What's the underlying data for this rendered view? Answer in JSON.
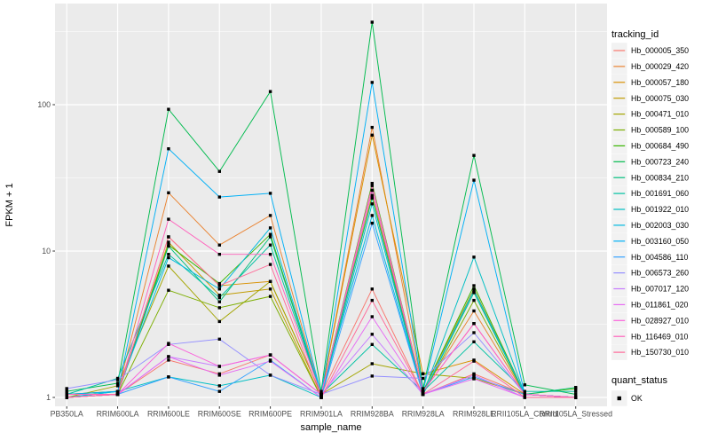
{
  "figure": {
    "background": "#FFFFFF",
    "panel_background": "#EBEBEB",
    "grid_color": "#FFFFFF",
    "axis_text_color": "#4D4D4D",
    "tick_color": "#333333",
    "point_color": "#000000",
    "legend_key_background": "#F2F2F2"
  },
  "chart_data": {
    "type": "line",
    "title": "",
    "xlabel": "sample_name",
    "ylabel": "FPKM + 1",
    "y_scale": "log10",
    "ylim": [
      0.9,
      480
    ],
    "ytick_labels": [
      "1",
      "10",
      "100"
    ],
    "ytick_values": [
      1,
      10,
      100
    ],
    "y_minor_values": [
      3.162,
      31.62,
      316.2
    ],
    "grid": true,
    "legend_position": "right",
    "legend_title": "tracking_id",
    "quant_legend": {
      "title": "quant_status",
      "label": "OK"
    },
    "values_note": "plotted values are FPKM + 1",
    "categories": [
      "PB350LA",
      "RRIM600LA",
      "RRIM600LE",
      "RRIM600SE",
      "RRIM600PE",
      "RRIM901LA",
      "RRIM928BA",
      "RRIM928LA",
      "RRIM928LE",
      "RRII105LA_Control",
      "RRII105LA_Stressed"
    ],
    "series": [
      {
        "name": "Hb_000005_350",
        "color": "#F8766D",
        "values": [
          1.05,
          1.05,
          1.8,
          1.45,
          1.95,
          1.05,
          5.5,
          1.05,
          1.45,
          1.05,
          1.0
        ]
      },
      {
        "name": "Hb_000029_420",
        "color": "#EA8331",
        "values": [
          1.05,
          1.1,
          25,
          11,
          17.5,
          1.05,
          70,
          1.1,
          3.9,
          1.05,
          1.0
        ]
      },
      {
        "name": "Hb_000057_180",
        "color": "#D89000",
        "values": [
          1.0,
          1.05,
          12.5,
          5.8,
          6.2,
          1.05,
          62,
          1.45,
          1.8,
          1.05,
          1.0
        ]
      },
      {
        "name": "Hb_000075_030",
        "color": "#C09B00",
        "values": [
          1.0,
          1.05,
          11.5,
          5.0,
          5.5,
          1.0,
          24,
          1.1,
          5.5,
          1.05,
          1.0
        ]
      },
      {
        "name": "Hb_000471_010",
        "color": "#A3A500",
        "values": [
          1.0,
          1.2,
          7.9,
          3.3,
          6.2,
          1.05,
          1.7,
          1.45,
          1.35,
          1.05,
          1.0
        ]
      },
      {
        "name": "Hb_000589_100",
        "color": "#7CAE00",
        "values": [
          1.0,
          1.05,
          5.4,
          4.1,
          4.9,
          1.0,
          26,
          1.05,
          4.6,
          1.05,
          1.0
        ]
      },
      {
        "name": "Hb_000684_490",
        "color": "#39B600",
        "values": [
          1.05,
          1.1,
          11,
          6.0,
          13,
          1.05,
          29,
          1.1,
          5.8,
          1.05,
          1.15
        ]
      },
      {
        "name": "Hb_000723_240",
        "color": "#00BB4E",
        "values": [
          1.1,
          1.25,
          93,
          35,
          123,
          1.1,
          366,
          1.15,
          45,
          1.22,
          1.05
        ]
      },
      {
        "name": "Hb_000834_210",
        "color": "#00BF7D",
        "values": [
          1.0,
          1.05,
          10.8,
          4.5,
          12.5,
          1.05,
          23,
          1.05,
          5.2,
          1.05,
          1.17
        ]
      },
      {
        "name": "Hb_001691_060",
        "color": "#00C1A3",
        "values": [
          1.05,
          1.35,
          9.5,
          4.8,
          11,
          1.05,
          2.3,
          1.1,
          2.4,
          1.1,
          1.1
        ]
      },
      {
        "name": "Hb_001922_010",
        "color": "#00BFC4",
        "values": [
          1.0,
          1.1,
          1.38,
          1.2,
          1.42,
          1.0,
          21,
          1.05,
          9.1,
          1.05,
          1.0
        ]
      },
      {
        "name": "Hb_002003_030",
        "color": "#00BAE0",
        "values": [
          1.0,
          1.1,
          9.0,
          5.5,
          14.4,
          1.05,
          17.5,
          1.05,
          5.4,
          1.05,
          1.0
        ]
      },
      {
        "name": "Hb_003160_050",
        "color": "#00B0F6",
        "values": [
          1.05,
          1.1,
          50,
          23.4,
          24.8,
          1.05,
          142,
          1.1,
          30.5,
          1.05,
          1.0
        ]
      },
      {
        "name": "Hb_004586_110",
        "color": "#35A2FF",
        "values": [
          1.0,
          1.05,
          1.38,
          1.1,
          1.8,
          1.0,
          15.5,
          1.05,
          1.38,
          1.05,
          1.0
        ]
      },
      {
        "name": "Hb_006573_260",
        "color": "#9590FF",
        "values": [
          1.15,
          1.32,
          2.3,
          2.5,
          1.42,
          1.05,
          1.4,
          1.35,
          2.77,
          1.05,
          1.0
        ]
      },
      {
        "name": "Hb_007017_120",
        "color": "#C77CFF",
        "values": [
          1.0,
          1.05,
          1.9,
          1.63,
          1.95,
          1.05,
          2.7,
          1.05,
          1.42,
          1.0,
          1.0
        ]
      },
      {
        "name": "Hb_011861_020",
        "color": "#E76BF3",
        "values": [
          1.05,
          1.05,
          1.9,
          1.42,
          1.77,
          1.0,
          3.56,
          1.05,
          1.34,
          1.0,
          1.0
        ]
      },
      {
        "name": "Hb_028927_010",
        "color": "#FA62DB",
        "values": [
          1.0,
          1.05,
          2.34,
          1.63,
          1.95,
          1.05,
          26,
          1.1,
          3.2,
          1.05,
          1.0
        ]
      },
      {
        "name": "Hb_116469_010",
        "color": "#FF62BC",
        "values": [
          1.05,
          1.05,
          16.5,
          9.5,
          9.5,
          1.05,
          28,
          1.1,
          3.2,
          1.05,
          1.0
        ]
      },
      {
        "name": "Hb_150730_010",
        "color": "#FF6A98",
        "values": [
          1.0,
          1.05,
          12.5,
          5.8,
          8.1,
          1.0,
          4.6,
          1.05,
          1.77,
          1.0,
          1.0
        ]
      }
    ]
  }
}
